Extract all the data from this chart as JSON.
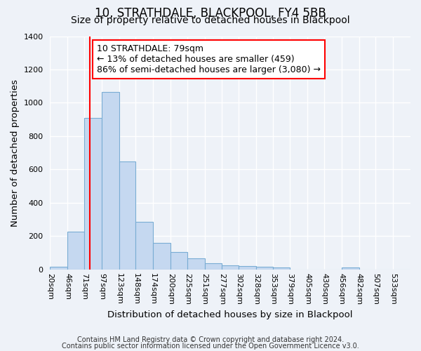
{
  "title": "10, STRATHDALE, BLACKPOOL, FY4 5BB",
  "subtitle": "Size of property relative to detached houses in Blackpool",
  "xlabel": "Distribution of detached houses by size in Blackpool",
  "ylabel": "Number of detached properties",
  "bin_labels": [
    "20sqm",
    "46sqm",
    "71sqm",
    "97sqm",
    "123sqm",
    "148sqm",
    "174sqm",
    "200sqm",
    "225sqm",
    "251sqm",
    "277sqm",
    "302sqm",
    "328sqm",
    "353sqm",
    "379sqm",
    "405sqm",
    "430sqm",
    "456sqm",
    "482sqm",
    "507sqm",
    "533sqm"
  ],
  "bar_heights": [
    15,
    228,
    910,
    1065,
    648,
    285,
    158,
    105,
    68,
    35,
    25,
    20,
    15,
    10,
    0,
    0,
    0,
    10,
    0,
    0,
    0
  ],
  "bar_color": "#c5d8f0",
  "bar_edge_color": "#7aadd4",
  "vline_x": 79,
  "ylim": [
    0,
    1400
  ],
  "yticks": [
    0,
    200,
    400,
    600,
    800,
    1000,
    1200,
    1400
  ],
  "annotation_line1": "10 STRATHDALE: 79sqm",
  "annotation_line2": "← 13% of detached houses are smaller (459)",
  "annotation_line3": "86% of semi-detached houses are larger (3,080) →",
  "footer1": "Contains HM Land Registry data © Crown copyright and database right 2024.",
  "footer2": "Contains public sector information licensed under the Open Government Licence v3.0.",
  "background_color": "#eef2f8",
  "grid_color": "#ffffff",
  "title_fontsize": 12,
  "subtitle_fontsize": 10,
  "axis_label_fontsize": 9.5,
  "tick_fontsize": 8,
  "annotation_fontsize": 9,
  "footer_fontsize": 7
}
